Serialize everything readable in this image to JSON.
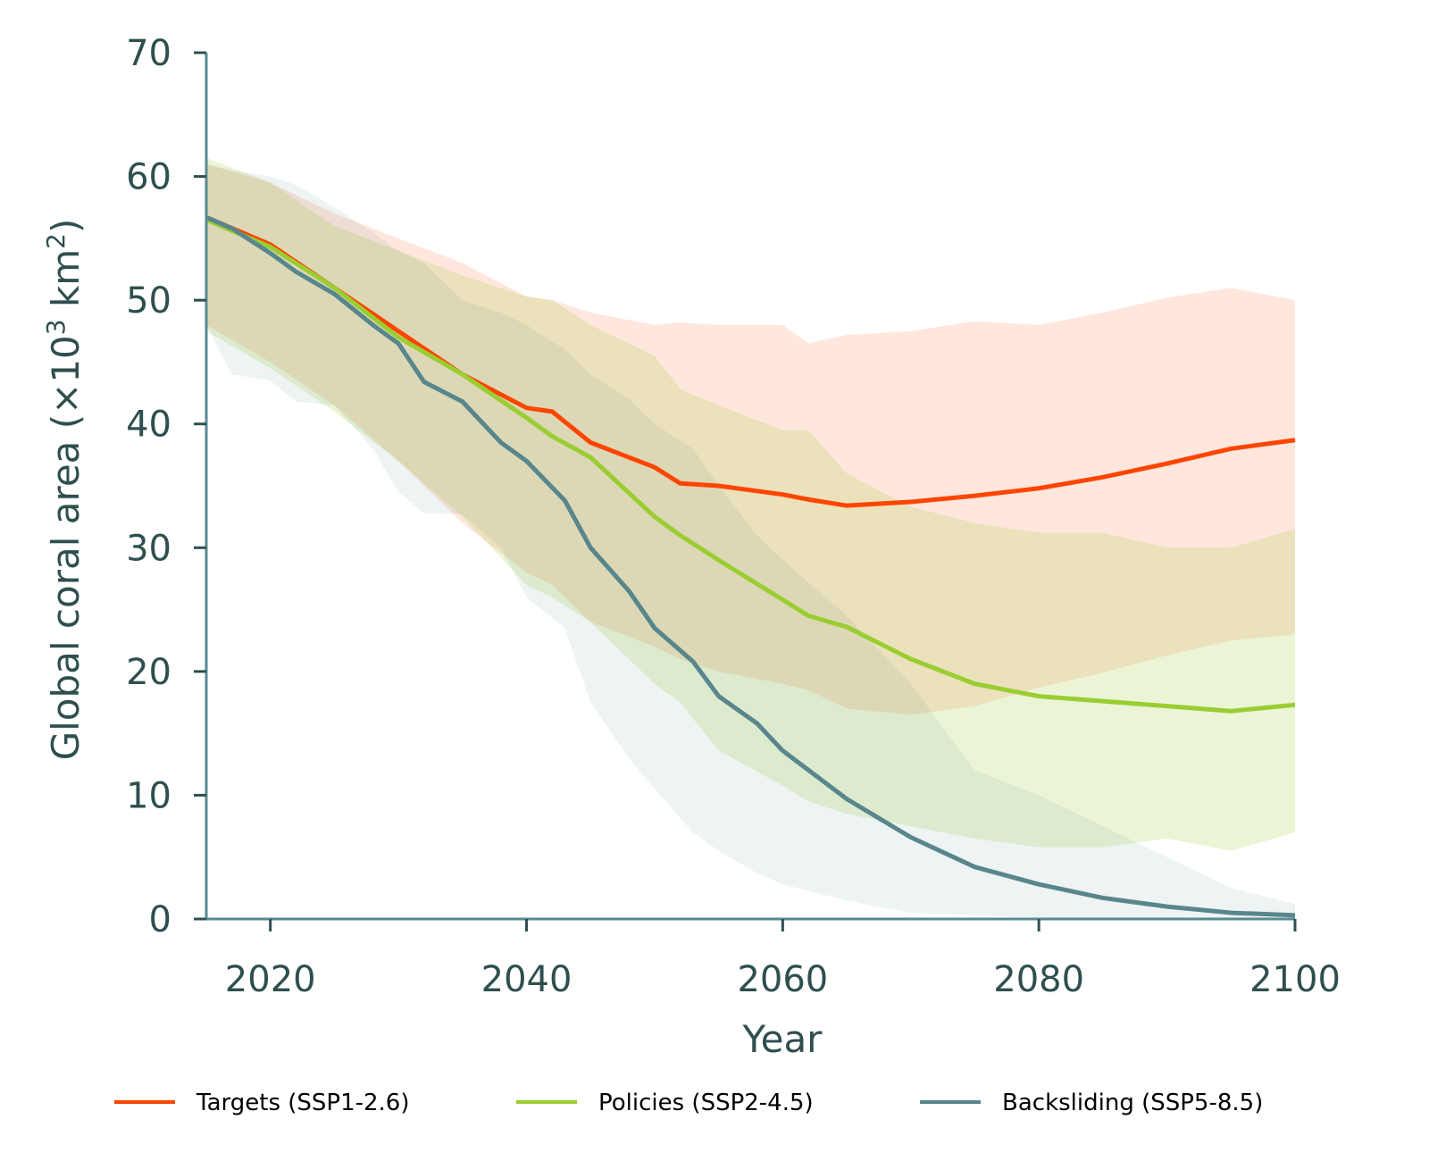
{
  "chart_data": {
    "type": "line",
    "title": "",
    "xlabel": "Year",
    "ylabel": "Global  coral area (×10³ km²)",
    "ylabel_parts": {
      "main": "Global  coral area (×10",
      "sup1": "3",
      "mid": " km",
      "sup2": "2",
      "end": ")"
    },
    "xlim": [
      2015,
      2100
    ],
    "ylim": [
      0,
      70
    ],
    "xticks": [
      2020,
      2040,
      2060,
      2080,
      2100
    ],
    "yticks": [
      0,
      10,
      20,
      30,
      40,
      50,
      60,
      70
    ],
    "grid": false,
    "legend_position": "bottom",
    "series": [
      {
        "name": "Targets (SSP1-2.6)",
        "color": "#ff4500",
        "x": [
          2015,
          2020,
          2025,
          2030,
          2035,
          2040,
          2042,
          2045,
          2050,
          2052,
          2055,
          2060,
          2062,
          2065,
          2070,
          2075,
          2080,
          2085,
          2090,
          2095,
          2100
        ],
        "values": [
          56.7,
          54.5,
          51,
          47.5,
          44,
          41.3,
          41,
          38.5,
          36.5,
          35.2,
          35,
          34.3,
          33.9,
          33.4,
          33.7,
          34.2,
          34.8,
          35.7,
          36.8,
          38,
          38.7
        ],
        "band_upper": [
          61,
          59.5,
          57,
          55,
          53,
          50.3,
          50,
          49,
          48,
          48.2,
          48,
          48,
          46.5,
          47.2,
          47.5,
          48.3,
          48,
          49,
          50.2,
          51,
          50
        ],
        "band_lower": [
          48,
          45,
          41.5,
          37,
          32,
          28,
          27,
          24,
          22,
          21,
          20,
          19,
          18.5,
          17,
          16.5,
          17.2,
          18.7,
          19.9,
          21.3,
          22.5,
          23
        ]
      },
      {
        "name": "Policies (SSP2-4.5)",
        "color": "#9acd32",
        "x": [
          2015,
          2020,
          2025,
          2030,
          2035,
          2040,
          2042,
          2045,
          2050,
          2052,
          2055,
          2060,
          2062,
          2065,
          2070,
          2075,
          2080,
          2085,
          2090,
          2095,
          2100
        ],
        "values": [
          56.5,
          54.3,
          51,
          47,
          44,
          40.5,
          39,
          37.3,
          32.5,
          31,
          29,
          25.8,
          24.5,
          23.6,
          21,
          19,
          18,
          17.6,
          17.2,
          16.8,
          17.3
        ],
        "band_upper": [
          61.5,
          59.5,
          56,
          54,
          52,
          50.3,
          50,
          48,
          45.5,
          42.8,
          41.5,
          39.5,
          39.5,
          36,
          33.3,
          32,
          31.2,
          31.2,
          30,
          30,
          31.5
        ],
        "band_lower": [
          47.5,
          44.5,
          41,
          37,
          32.5,
          27,
          26,
          24,
          19,
          17.5,
          13.6,
          10.8,
          9.5,
          8.5,
          7.5,
          6.5,
          5.8,
          5.8,
          6.5,
          5.5,
          7
        ]
      },
      {
        "name": "Backsliding (SSP5-8.5)",
        "color": "#58868c",
        "x": [
          2015,
          2017,
          2020,
          2022,
          2025,
          2028,
          2030,
          2032,
          2035,
          2038,
          2040,
          2043,
          2045,
          2048,
          2050,
          2053,
          2055,
          2058,
          2060,
          2065,
          2070,
          2075,
          2080,
          2085,
          2090,
          2095,
          2100
        ],
        "values": [
          56.7,
          55.8,
          53.8,
          52.3,
          50.5,
          48,
          46.5,
          43.4,
          41.8,
          38.5,
          37,
          33.8,
          30,
          26.5,
          23.5,
          20.8,
          18,
          15.8,
          13.6,
          9.7,
          6.6,
          4.2,
          2.8,
          1.7,
          1.0,
          0.5,
          0.3
        ],
        "band_upper": [
          61,
          60.5,
          60,
          59.3,
          57.5,
          55.5,
          54,
          53,
          50,
          49,
          48,
          46,
          44,
          42,
          40,
          38,
          35,
          31,
          29,
          24.5,
          19,
          12,
          10,
          7.5,
          5,
          2.5,
          1.2
        ],
        "band_lower": [
          48,
          44,
          43.5,
          41.8,
          41.5,
          38,
          34.5,
          32.8,
          32.7,
          30,
          26,
          23.5,
          17.5,
          13,
          10.5,
          7,
          5.5,
          3.7,
          2.8,
          1.5,
          0.5,
          0.3,
          0.1,
          0.05,
          0,
          0,
          0
        ]
      }
    ]
  }
}
